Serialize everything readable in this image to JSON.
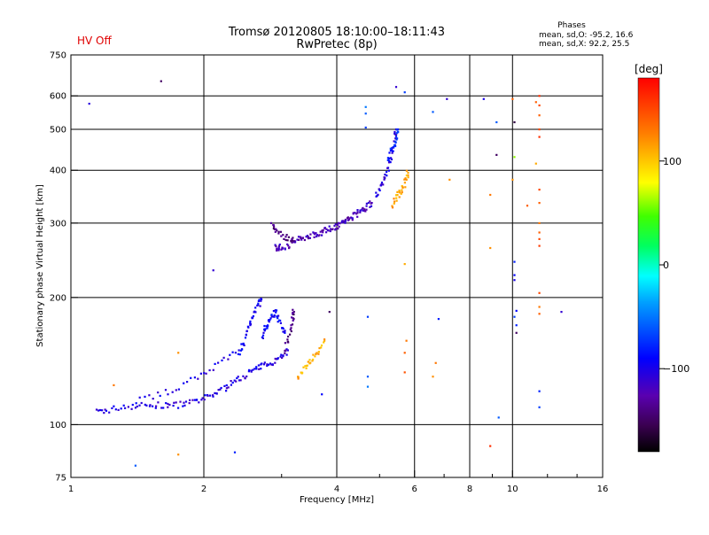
{
  "header": {
    "status": "HV Off",
    "title": "Tromsø 20120805 18:10:00–18:11:43",
    "subtitle": "RwPretec (8p)",
    "stats_title": "Phases",
    "stats_o": "mean, sd,O: -95.2, 16.6",
    "stats_x": "mean, sd,X:  92.2, 25.5"
  },
  "colorbar": {
    "label": "[deg]",
    "ticks": [
      {
        "value": 100,
        "label": "100"
      },
      {
        "value": 0,
        "label": "0"
      },
      {
        "value": -100,
        "label": "−100"
      }
    ],
    "range": [
      -180,
      180
    ]
  },
  "chart_data": {
    "type": "scatter",
    "xlabel": "Frequency [MHz]",
    "ylabel": "Stationary phase Virtual Height [km]",
    "xscale": "log",
    "yscale": "log",
    "xlim": [
      1,
      16
    ],
    "ylim": [
      75,
      750
    ],
    "xticks": [
      {
        "value": 1,
        "label": "1"
      },
      {
        "value": 2,
        "label": "2"
      },
      {
        "value": 4,
        "label": "4"
      },
      {
        "value": 6,
        "label": "6"
      },
      {
        "value": 8,
        "label": "8"
      },
      {
        "value": 10,
        "label": "10"
      },
      {
        "value": 16,
        "label": "16"
      }
    ],
    "yticks": [
      {
        "value": 75,
        "label": "75"
      },
      {
        "value": 100,
        "label": "100"
      },
      {
        "value": 200,
        "label": "200"
      },
      {
        "value": 300,
        "label": "300"
      },
      {
        "value": 400,
        "label": "400"
      },
      {
        "value": 500,
        "label": "500"
      },
      {
        "value": 600,
        "label": "600"
      },
      {
        "value": 750,
        "label": "750"
      }
    ],
    "grid": true,
    "color_variable": "phase [deg]",
    "traces": [
      {
        "f": [
          1.15,
          1.2,
          1.3,
          1.4,
          1.5,
          1.6,
          1.7,
          1.8,
          1.9,
          2.0,
          2.1,
          2.2,
          2.3,
          2.4,
          2.5,
          2.6,
          2.7,
          2.8,
          2.9,
          3.0,
          3.1
        ],
        "h": [
          107,
          108,
          110,
          111,
          111,
          111,
          111,
          112,
          113,
          115,
          118,
          121,
          125,
          128,
          132,
          135,
          137,
          140,
          142,
          146,
          150
        ],
        "phase": -105
      },
      {
        "f": [
          1.4,
          1.6,
          1.8,
          2.0,
          2.2,
          2.4
        ],
        "h": [
          114,
          118,
          124,
          133,
          140,
          150
        ],
        "phase": -100
      },
      {
        "f": [
          2.4,
          2.45,
          2.5,
          2.55,
          2.6,
          2.65,
          2.7
        ],
        "h": [
          145,
          155,
          165,
          175,
          185,
          192,
          198
        ],
        "phase": -95
      },
      {
        "f": [
          2.7,
          2.75,
          2.8,
          2.85,
          2.9,
          2.95,
          3.0,
          3.05
        ],
        "h": [
          160,
          168,
          175,
          180,
          185,
          178,
          170,
          165
        ],
        "phase": -90
      },
      {
        "f": [
          3.05,
          3.1,
          3.15,
          3.18,
          3.2
        ],
        "h": [
          148,
          160,
          170,
          180,
          185
        ],
        "phase": -140
      },
      {
        "f": [
          2.9,
          2.95,
          3.0,
          3.1,
          3.2,
          3.3,
          3.4,
          3.5,
          3.6,
          3.7,
          3.8,
          3.9,
          4.0,
          4.1,
          4.2,
          4.3,
          4.4,
          4.5,
          4.6,
          4.7,
          4.8
        ],
        "h": [
          263,
          262,
          263,
          266,
          270,
          275,
          278,
          281,
          283,
          286,
          289,
          292,
          296,
          300,
          305,
          309,
          313,
          318,
          323,
          329,
          335
        ],
        "phase": -120
      },
      {
        "f": [
          2.85,
          2.9,
          3.0,
          3.1,
          3.2
        ],
        "h": [
          300,
          290,
          282,
          276,
          272
        ],
        "phase": -140
      },
      {
        "f": [
          4.9,
          5.0,
          5.1,
          5.2,
          5.3,
          5.4,
          5.45
        ],
        "h": [
          345,
          360,
          380,
          400,
          430,
          470,
          500
        ],
        "phase": -105
      },
      {
        "f": [
          5.35,
          5.45,
          5.55,
          5.65,
          5.75,
          5.8
        ],
        "h": [
          330,
          345,
          355,
          365,
          380,
          395
        ],
        "phase": 110
      },
      {
        "f": [
          3.25,
          3.35,
          3.45,
          3.55,
          3.65,
          3.75
        ],
        "h": [
          128,
          135,
          140,
          145,
          150,
          158
        ],
        "phase": 110
      },
      {
        "f": [
          5.2,
          5.3,
          5.4,
          5.45,
          5.5
        ],
        "h": [
          420,
          440,
          460,
          480,
          500
        ],
        "phase": -80
      }
    ],
    "points": [
      {
        "f": 1.1,
        "h": 575,
        "phase": -105
      },
      {
        "f": 1.6,
        "h": 650,
        "phase": -150
      },
      {
        "f": 1.4,
        "h": 80,
        "phase": -60
      },
      {
        "f": 1.75,
        "h": 85,
        "phase": 120
      },
      {
        "f": 2.35,
        "h": 86,
        "phase": -80
      },
      {
        "f": 2.1,
        "h": 232,
        "phase": -110
      },
      {
        "f": 1.25,
        "h": 124,
        "phase": 130
      },
      {
        "f": 1.75,
        "h": 148,
        "phase": 120
      },
      {
        "f": 4.7,
        "h": 180,
        "phase": -70
      },
      {
        "f": 4.7,
        "h": 130,
        "phase": -60
      },
      {
        "f": 4.7,
        "h": 123,
        "phase": -50
      },
      {
        "f": 4.65,
        "h": 565,
        "phase": -50
      },
      {
        "f": 4.65,
        "h": 545,
        "phase": -60
      },
      {
        "f": 4.65,
        "h": 505,
        "phase": -70
      },
      {
        "f": 5.45,
        "h": 630,
        "phase": -110
      },
      {
        "f": 5.7,
        "h": 612,
        "phase": -70
      },
      {
        "f": 5.7,
        "h": 240,
        "phase": 110
      },
      {
        "f": 5.75,
        "h": 158,
        "phase": 130
      },
      {
        "f": 5.7,
        "h": 148,
        "phase": 140
      },
      {
        "f": 5.7,
        "h": 133,
        "phase": 145
      },
      {
        "f": 3.85,
        "h": 185,
        "phase": -150
      },
      {
        "f": 3.7,
        "h": 118,
        "phase": -90
      },
      {
        "f": 6.6,
        "h": 550,
        "phase": -60
      },
      {
        "f": 6.8,
        "h": 178,
        "phase": -80
      },
      {
        "f": 6.7,
        "h": 140,
        "phase": 130
      },
      {
        "f": 6.6,
        "h": 130,
        "phase": 120
      },
      {
        "f": 7.1,
        "h": 590,
        "phase": -110
      },
      {
        "f": 7.2,
        "h": 380,
        "phase": 120
      },
      {
        "f": 8.6,
        "h": 590,
        "phase": -100
      },
      {
        "f": 8.9,
        "h": 350,
        "phase": 130
      },
      {
        "f": 8.9,
        "h": 262,
        "phase": 120
      },
      {
        "f": 8.9,
        "h": 89,
        "phase": 160
      },
      {
        "f": 9.2,
        "h": 520,
        "phase": -60
      },
      {
        "f": 9.2,
        "h": 435,
        "phase": -150
      },
      {
        "f": 9.3,
        "h": 104,
        "phase": -60
      },
      {
        "f": 10.0,
        "h": 590,
        "phase": 140
      },
      {
        "f": 10.1,
        "h": 520,
        "phase": -160
      },
      {
        "f": 10.1,
        "h": 430,
        "phase": 60
      },
      {
        "f": 10.0,
        "h": 380,
        "phase": 120
      },
      {
        "f": 10.1,
        "h": 243,
        "phase": -80
      },
      {
        "f": 10.1,
        "h": 226,
        "phase": -90
      },
      {
        "f": 10.1,
        "h": 220,
        "phase": -100
      },
      {
        "f": 10.1,
        "h": 180,
        "phase": -70
      },
      {
        "f": 10.2,
        "h": 165,
        "phase": -150
      },
      {
        "f": 10.2,
        "h": 172,
        "phase": -80
      },
      {
        "f": 10.2,
        "h": 186,
        "phase": -90
      },
      {
        "f": 10.8,
        "h": 330,
        "phase": 140
      },
      {
        "f": 11.3,
        "h": 580,
        "phase": 140
      },
      {
        "f": 11.3,
        "h": 415,
        "phase": 110
      },
      {
        "f": 11.5,
        "h": 600,
        "phase": 160
      },
      {
        "f": 11.5,
        "h": 570,
        "phase": 150
      },
      {
        "f": 11.5,
        "h": 540,
        "phase": 140
      },
      {
        "f": 11.5,
        "h": 500,
        "phase": 150
      },
      {
        "f": 11.5,
        "h": 480,
        "phase": 160
      },
      {
        "f": 11.5,
        "h": 360,
        "phase": 150
      },
      {
        "f": 11.5,
        "h": 335,
        "phase": 140
      },
      {
        "f": 11.5,
        "h": 300,
        "phase": 130
      },
      {
        "f": 11.5,
        "h": 285,
        "phase": 140
      },
      {
        "f": 11.5,
        "h": 275,
        "phase": 150
      },
      {
        "f": 11.5,
        "h": 265,
        "phase": 155
      },
      {
        "f": 11.5,
        "h": 205,
        "phase": 150
      },
      {
        "f": 11.5,
        "h": 183,
        "phase": 140
      },
      {
        "f": 11.5,
        "h": 190,
        "phase": 130
      },
      {
        "f": 11.5,
        "h": 120,
        "phase": -80
      },
      {
        "f": 11.5,
        "h": 110,
        "phase": -70
      },
      {
        "f": 12.9,
        "h": 185,
        "phase": -110
      }
    ]
  }
}
